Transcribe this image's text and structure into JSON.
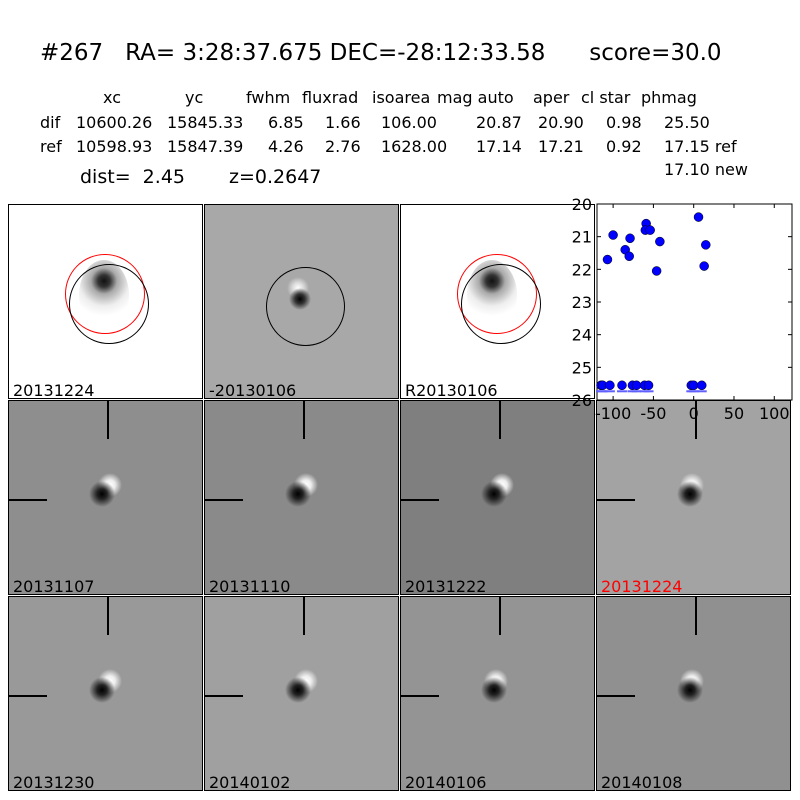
{
  "title": "#267   RA= 3:28:37.675 DEC=-28:12:33.58      score=30.0",
  "table": {
    "header": [
      "xc",
      "yc",
      "fwhm",
      "fluxrad",
      "isoarea",
      "mag auto",
      "aper",
      "cl star",
      "phmag"
    ],
    "dif": {
      "label": "dif",
      "values": [
        "10600.26",
        "15845.33",
        "6.85",
        "1.66",
        "106.00",
        "20.87",
        "20.90",
        "0.98",
        "25.50"
      ]
    },
    "ref": {
      "label": "ref",
      "values": [
        "10598.93",
        "15847.39",
        "4.26",
        "2.76",
        "1628.00",
        "17.14",
        "17.21",
        "0.92",
        "17.15 ref"
      ]
    },
    "new_phmag": "17.10 new"
  },
  "dist": "dist=  2.45",
  "z": "z=0.2647",
  "stamps": [
    {
      "label": "20131224",
      "color": "#000000"
    },
    {
      "label": "-20130106",
      "color": "#000000"
    },
    {
      "label": "R20130106",
      "color": "#000000"
    },
    {
      "label": "20131107",
      "color": "#000000"
    },
    {
      "label": "20131110",
      "color": "#000000"
    },
    {
      "label": "20131222",
      "color": "#000000"
    },
    {
      "label": "20131224",
      "color": "#ff0000"
    },
    {
      "label": "20131230",
      "color": "#000000"
    },
    {
      "label": "20140102",
      "color": "#000000"
    },
    {
      "label": "20140106",
      "color": "#000000"
    },
    {
      "label": "20140108",
      "color": "#000000"
    }
  ],
  "chart_data": {
    "type": "scatter",
    "title": "",
    "xlabel": "",
    "ylabel": "",
    "xlim": [
      -120,
      122
    ],
    "ylim": [
      26,
      20
    ],
    "xticks": [
      "-100",
      "-50",
      "0",
      "50",
      "100"
    ],
    "xtick_values": [
      -100,
      -50,
      0,
      50,
      100
    ],
    "yticks": [
      "20",
      "21",
      "22",
      "23",
      "24",
      "25",
      "26"
    ],
    "ytick_values": [
      20,
      21,
      22,
      23,
      24,
      25,
      26
    ],
    "marker_color": "#0000ff",
    "points": [
      {
        "x": -107,
        "y": 21.7
      },
      {
        "x": -100,
        "y": 20.95
      },
      {
        "x": -85,
        "y": 21.4
      },
      {
        "x": -79,
        "y": 21.05
      },
      {
        "x": -80,
        "y": 21.6
      },
      {
        "x": -59,
        "y": 20.6
      },
      {
        "x": -60,
        "y": 20.8
      },
      {
        "x": -54,
        "y": 20.8
      },
      {
        "x": -42,
        "y": 21.15
      },
      {
        "x": -46,
        "y": 22.05
      },
      {
        "x": 6,
        "y": 20.4
      },
      {
        "x": 15,
        "y": 21.25
      },
      {
        "x": 13,
        "y": 21.9
      }
    ],
    "limit_points": [
      {
        "x": -115,
        "y": 25.55
      },
      {
        "x": -113,
        "y": 25.55
      },
      {
        "x": -104,
        "y": 25.55
      },
      {
        "x": -89,
        "y": 25.55
      },
      {
        "x": -76,
        "y": 25.55
      },
      {
        "x": -71,
        "y": 25.55
      },
      {
        "x": -61,
        "y": 25.55
      },
      {
        "x": -56,
        "y": 25.55
      },
      {
        "x": -3,
        "y": 25.55
      },
      {
        "x": 0,
        "y": 25.55
      },
      {
        "x": 10,
        "y": 25.55
      }
    ]
  }
}
